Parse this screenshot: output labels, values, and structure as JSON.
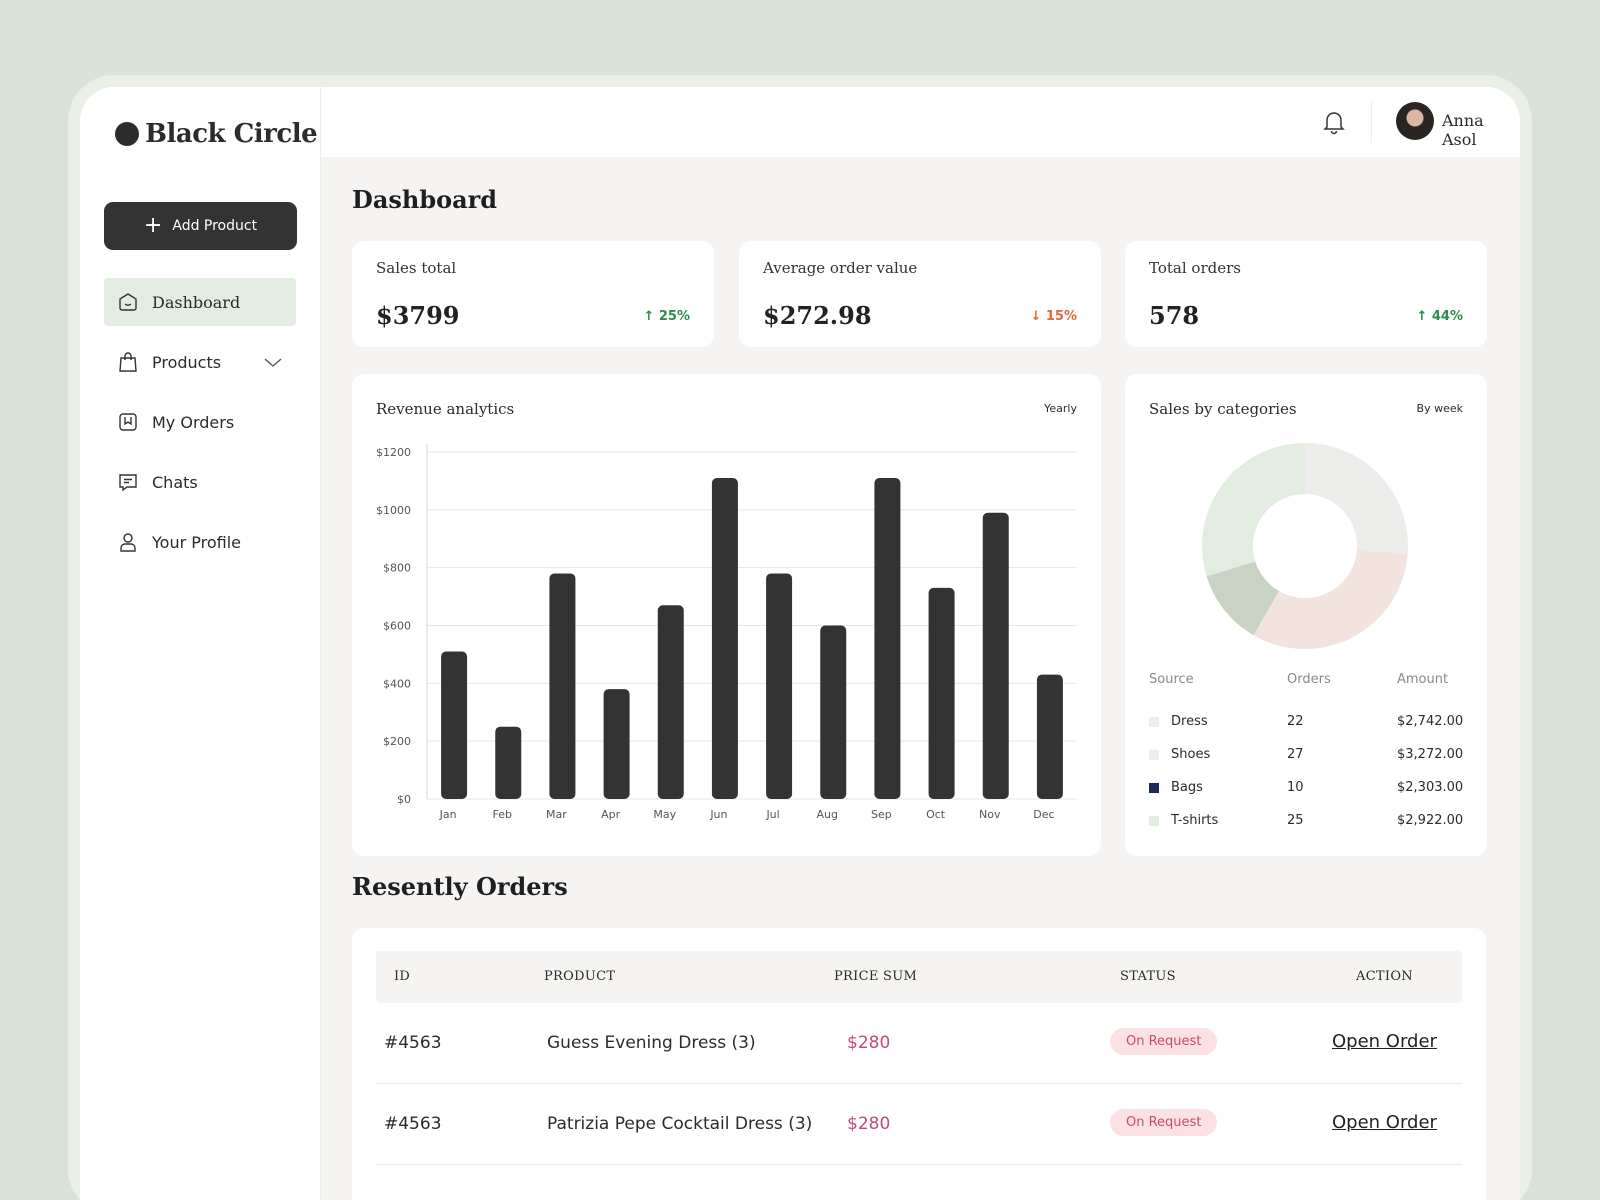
{
  "brand": {
    "name": "Black Circle"
  },
  "sidebar": {
    "add_button": "Add Product",
    "items": [
      {
        "label": "Dashboard",
        "icon": "home-icon",
        "active": true
      },
      {
        "label": "Products",
        "icon": "shopping-bag-icon",
        "expandable": true
      },
      {
        "label": "My Orders",
        "icon": "bookmark-icon"
      },
      {
        "label": "Chats",
        "icon": "chat-icon"
      },
      {
        "label": "Your Profile",
        "icon": "user-icon"
      }
    ]
  },
  "topbar": {
    "user_name": "Anna Asol"
  },
  "page": {
    "title": "Dashboard"
  },
  "kpis": [
    {
      "label": "Sales total",
      "value": "$3799",
      "trend": "25%",
      "direction": "up"
    },
    {
      "label": "Average order value",
      "value": "$272.98",
      "trend": "15%",
      "direction": "down"
    },
    {
      "label": "Total orders",
      "value": "578",
      "trend": "44%",
      "direction": "up"
    }
  ],
  "revenue": {
    "title": "Revenue analytics",
    "filter": "Yearly"
  },
  "categories": {
    "title": "Sales by categories",
    "filter": "By week",
    "headers": {
      "source": "Source",
      "orders": "Orders",
      "amount": "Amount"
    },
    "rows": [
      {
        "source": "Dress",
        "orders": "22",
        "amount": "$2,742.00",
        "color": "#ededec"
      },
      {
        "source": "Shoes",
        "orders": "27",
        "amount": "$3,272.00",
        "color": "#ededec"
      },
      {
        "source": "Bags",
        "orders": "10",
        "amount": "$2,303.00",
        "color": "#1f2a5c"
      },
      {
        "source": "T-shirts",
        "orders": "25",
        "amount": "$2,922.00",
        "color": "#e3ece1"
      }
    ]
  },
  "chart_data": [
    {
      "type": "bar",
      "title": "Revenue analytics",
      "categories": [
        "Jan",
        "Feb",
        "Mar",
        "Apr",
        "May",
        "Jun",
        "Jul",
        "Aug",
        "Sep",
        "Oct",
        "Nov",
        "Dec"
      ],
      "values": [
        510,
        250,
        780,
        380,
        670,
        1110,
        780,
        600,
        1110,
        730,
        990,
        430
      ],
      "y_ticks": [
        "$0",
        "$200",
        "$400",
        "$600",
        "$800",
        "$1000",
        "$1200"
      ],
      "ylim": [
        0,
        1200
      ],
      "grid": true,
      "bar_color": "#333333"
    },
    {
      "type": "pie",
      "style": "donut",
      "title": "Sales by categories",
      "labels": [
        "Dress",
        "Shoes",
        "Bags",
        "T-shirts"
      ],
      "slices": [
        {
          "label": "Dress",
          "value": 22,
          "color": "#ececea"
        },
        {
          "label": "Shoes",
          "value": 27,
          "color": "#f2e3de"
        },
        {
          "label": "Bags",
          "value": 10,
          "color": "#c8d3c4"
        },
        {
          "label": "T-shirts",
          "value": 25,
          "color": "#e3ece1"
        }
      ]
    }
  ],
  "orders": {
    "title": "Resently Orders",
    "headers": [
      "ID",
      "PRODUCT",
      "PRICE SUM",
      "STATUS",
      "ACTION"
    ],
    "rows": [
      {
        "id": "#4563",
        "product": "Guess Evening Dress  (3)",
        "price": "$280",
        "status": "On Request",
        "action": "Open Order"
      },
      {
        "id": "#4563",
        "product": "Patrizia Pepe Cocktail Dress (3)",
        "price": "$280",
        "status": "On Request",
        "action": "Open Order"
      }
    ]
  }
}
